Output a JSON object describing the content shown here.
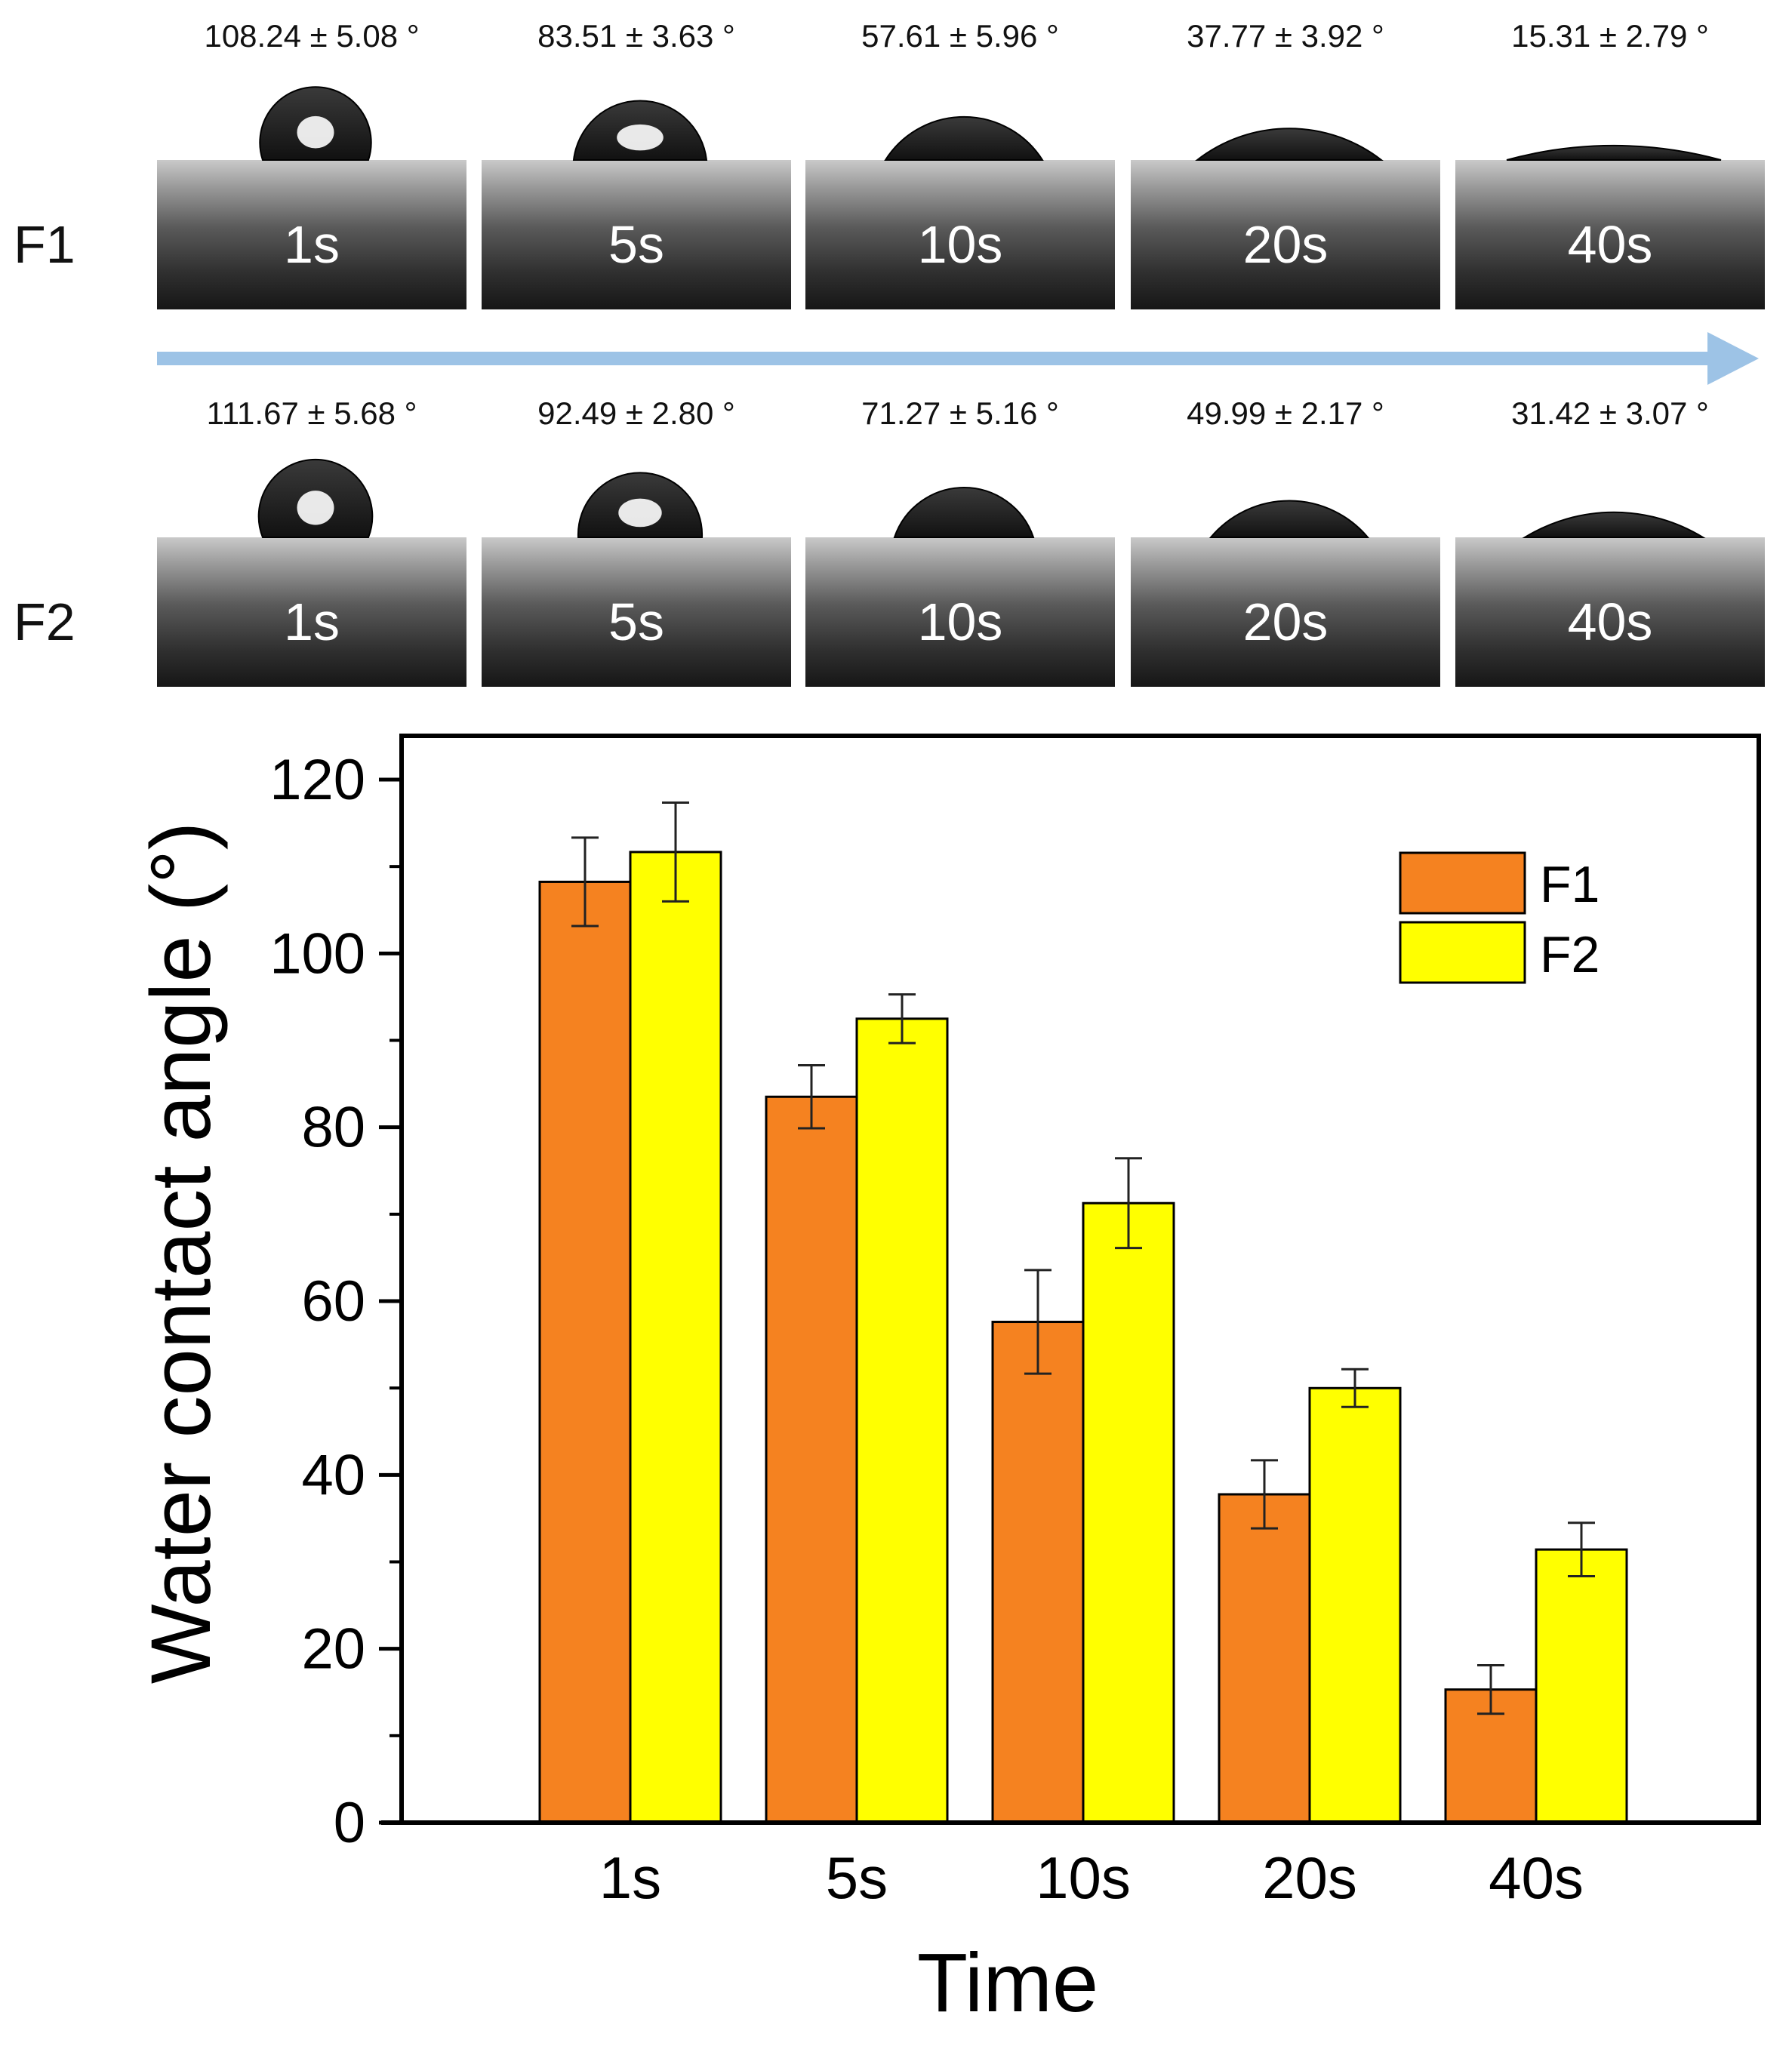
{
  "photo_panel": {
    "rows": [
      {
        "label": "F1",
        "angles": [
          "108.24 ± 5.08 °",
          "83.51 ± 3.63 °",
          "57.61 ± 5.96 °",
          "37.77 ± 3.92 °",
          "15.31 ± 2.79 °"
        ],
        "times": [
          "1s",
          "5s",
          "10s",
          "20s",
          "40s"
        ],
        "drop_angles_deg": [
          108.24,
          83.51,
          57.61,
          37.77,
          15.31
        ]
      },
      {
        "label": "F2",
        "angles": [
          "111.67 ± 5.68 °",
          "92.49 ± 2.80 °",
          "71.27 ± 5.16 °",
          "49.99 ± 2.17 °",
          "31.42 ± 3.07 °"
        ],
        "times": [
          "1s",
          "5s",
          "10s",
          "20s",
          "40s"
        ],
        "drop_angles_deg": [
          111.67,
          92.49,
          71.27,
          49.99,
          31.42
        ]
      }
    ],
    "arrow_color": "#9dc3e6"
  },
  "chart_data": {
    "type": "bar",
    "categories": [
      "1s",
      "5s",
      "10s",
      "20s",
      "40s"
    ],
    "series": [
      {
        "name": "F1",
        "color": "#f58220",
        "values": [
          108.24,
          83.51,
          57.61,
          37.77,
          15.31
        ],
        "errors": [
          5.08,
          3.63,
          5.96,
          3.92,
          2.79
        ]
      },
      {
        "name": "F2",
        "color": "#ffff00",
        "values": [
          111.67,
          92.49,
          71.27,
          49.99,
          31.42
        ],
        "errors": [
          5.68,
          2.8,
          5.16,
          2.17,
          3.07
        ]
      }
    ],
    "xlabel": "Time",
    "ylabel": "Water contact angle (°)",
    "ylim": [
      0,
      125
    ],
    "yticks": [
      "0",
      "20",
      "40",
      "60",
      "80",
      "100",
      "120"
    ],
    "legend_position": "top-right",
    "grid": false
  }
}
